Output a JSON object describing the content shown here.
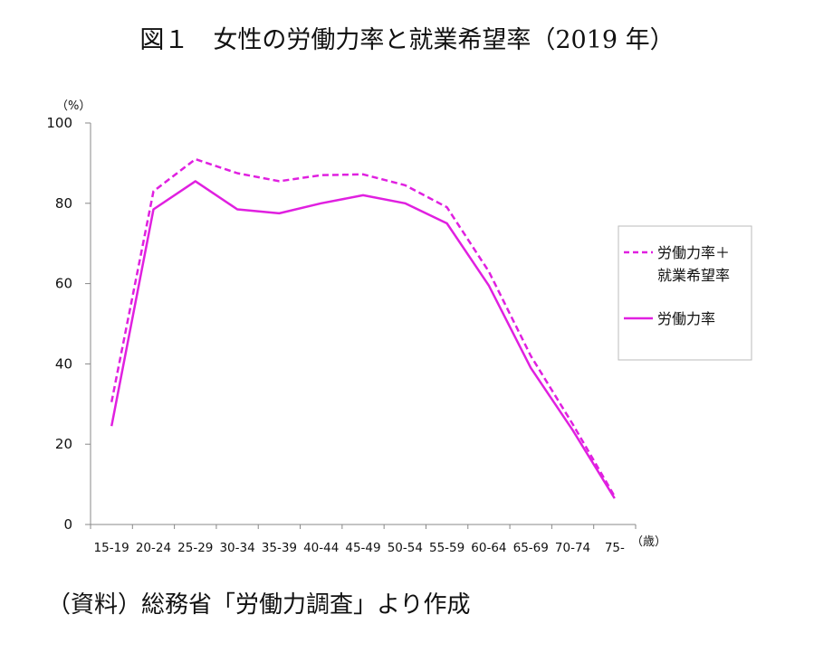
{
  "title": "図１　女性の労働力率と就業希望率（2019 年）",
  "source": "（資料）総務省「労働力調査」より作成",
  "chart_data": {
    "type": "line",
    "y_unit_label": "（%）",
    "x_unit_label": "（歳）",
    "ylim": [
      0,
      100
    ],
    "yticks": [
      0,
      20,
      40,
      60,
      80,
      100
    ],
    "grid": false,
    "legend_position": "right",
    "categories": [
      "15-19",
      "20-24",
      "25-29",
      "30-34",
      "35-39",
      "40-44",
      "45-49",
      "50-54",
      "55-59",
      "60-64",
      "65-69",
      "70-74",
      "75-"
    ],
    "series": [
      {
        "name": "労働力率＋\n就業希望率",
        "style": "dashed",
        "color": "#e020e0",
        "values": [
          30.5,
          83.0,
          91.0,
          87.5,
          85.5,
          87.0,
          87.2,
          84.5,
          79.0,
          63.0,
          42.0,
          25.0,
          7.0
        ]
      },
      {
        "name": "労働力率",
        "style": "solid",
        "color": "#e020e0",
        "values": [
          24.5,
          78.5,
          85.5,
          78.5,
          77.5,
          80.0,
          82.0,
          80.0,
          75.0,
          59.5,
          39.0,
          23.5,
          6.5
        ]
      }
    ]
  }
}
